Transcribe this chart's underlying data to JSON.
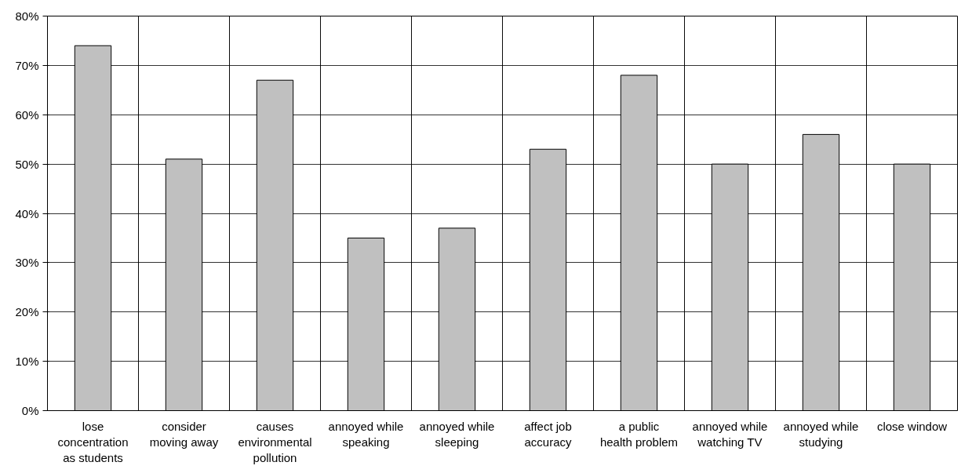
{
  "chart_data": {
    "type": "bar",
    "categories": [
      "lose concentration as students",
      "consider moving away",
      "causes environmental pollution",
      "annoyed while speaking",
      "annoyed while sleeping",
      "affect job accuracy",
      "a public health problem",
      "annoyed while watching TV",
      "annoyed while studying",
      "close window"
    ],
    "values": [
      74,
      51,
      67,
      35,
      37,
      53,
      68,
      50,
      56,
      50
    ],
    "color": "#c0c0c0",
    "ylim": [
      0,
      80
    ],
    "yticks": [
      {
        "value": 0,
        "label": "0%"
      },
      {
        "value": 10,
        "label": "10%"
      },
      {
        "value": 20,
        "label": "20%"
      },
      {
        "value": 30,
        "label": "30%"
      },
      {
        "value": 40,
        "label": "40%"
      },
      {
        "value": 50,
        "label": "50%"
      },
      {
        "value": 60,
        "label": "60%"
      },
      {
        "value": 70,
        "label": "70%"
      },
      {
        "value": 80,
        "label": "80%"
      }
    ],
    "grid": true
  }
}
